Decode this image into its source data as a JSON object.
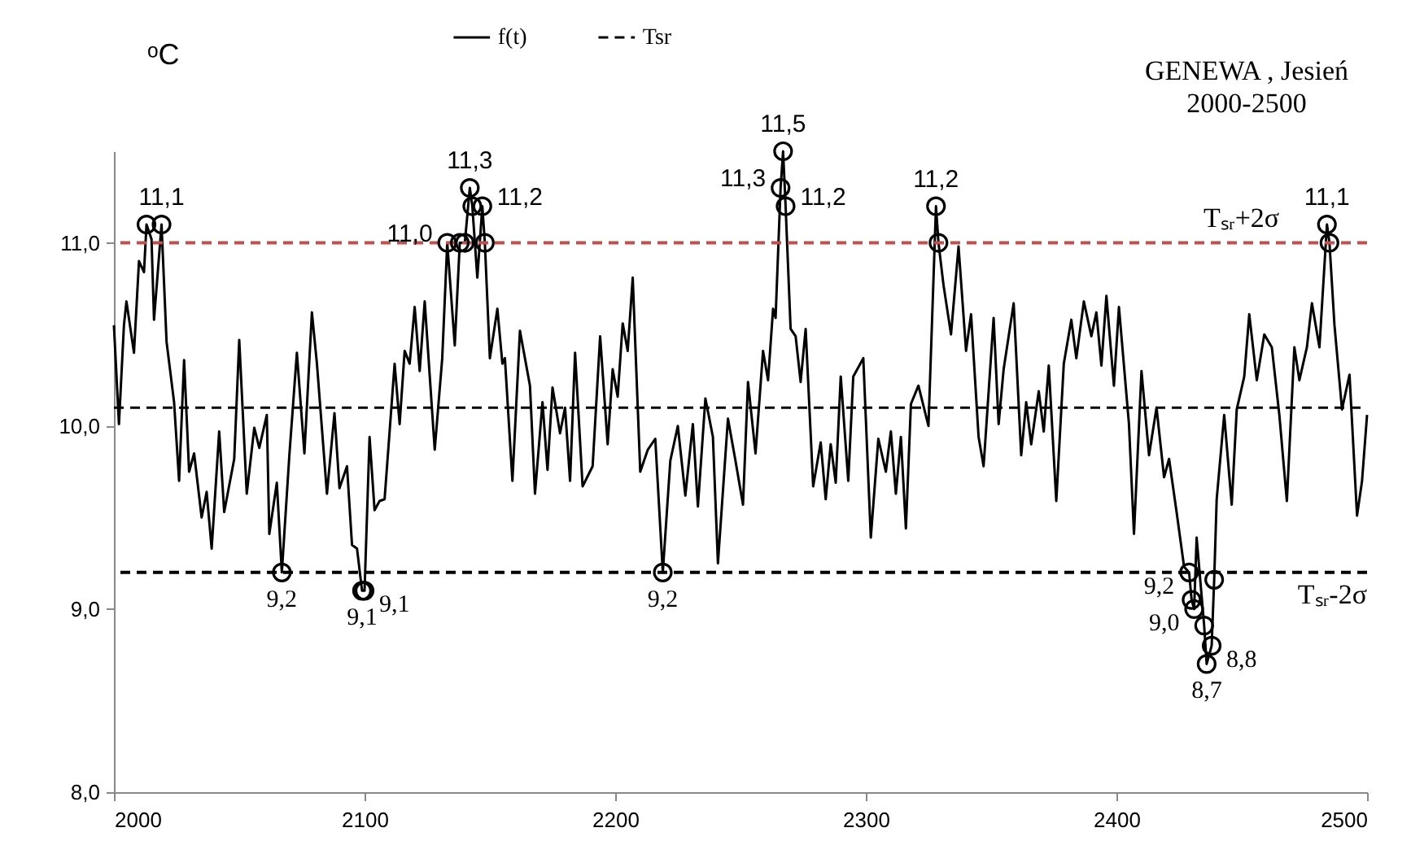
{
  "chart_data": {
    "type": "line",
    "title": "GENEWA , Jesień",
    "subtitle": "2000-2500",
    "ylabel": "ᵒC",
    "xlim": [
      2000,
      2500
    ],
    "xticks": [
      2000,
      2100,
      2200,
      2300,
      2400,
      2500
    ],
    "ylim": [
      8,
      11.5
    ],
    "yticks": [
      {
        "value": 8,
        "label": "8,0"
      },
      {
        "value": 9,
        "label": "9,0"
      },
      {
        "value": 10,
        "label": "10,0"
      },
      {
        "value": 11,
        "label": "11,0"
      }
    ],
    "grid": false,
    "legend": "top",
    "marker": "none",
    "series": [
      {
        "name": "f(t)",
        "type": "line",
        "color": "#000000",
        "line_style": "solid",
        "x": [
          2000,
          2002,
          2004,
          2005,
          2008,
          2010,
          2012,
          2013,
          2015,
          2016,
          2019,
          2021,
          2024,
          2026,
          2028,
          2030,
          2032,
          2035,
          2037,
          2039,
          2042,
          2044,
          2048,
          2050,
          2053,
          2056,
          2058,
          2061,
          2062,
          2065,
          2067,
          2070,
          2073,
          2076,
          2079,
          2081,
          2085,
          2088,
          2090,
          2093,
          2095,
          2097,
          2099,
          2100,
          2102,
          2104,
          2106,
          2108,
          2112,
          2114,
          2116,
          2118,
          2120,
          2122,
          2124,
          2128,
          2131,
          2133,
          2136,
          2138,
          2140,
          2142,
          2143,
          2145,
          2147,
          2148,
          2150,
          2153,
          2155,
          2156,
          2159,
          2162,
          2166,
          2168,
          2171,
          2173,
          2175,
          2178,
          2180,
          2182,
          2184,
          2187,
          2191,
          2194,
          2197,
          2199,
          2201,
          2203,
          2205,
          2207,
          2210,
          2213,
          2216,
          2219,
          2222,
          2225,
          2228,
          2231,
          2233,
          2236,
          2239,
          2241,
          2245,
          2248,
          2251,
          2253,
          2256,
          2259,
          2261,
          2263,
          2264,
          2266,
          2267,
          2268,
          2270,
          2272,
          2274,
          2276,
          2279,
          2282,
          2284,
          2286,
          2288,
          2290,
          2293,
          2295,
          2299,
          2302,
          2305,
          2308,
          2310,
          2312,
          2314,
          2316,
          2318,
          2321,
          2325,
          2328,
          2329,
          2331,
          2334,
          2337,
          2340,
          2342,
          2345,
          2347,
          2351,
          2353,
          2355,
          2359,
          2362,
          2364,
          2366,
          2369,
          2371,
          2373,
          2376,
          2379,
          2382,
          2384,
          2387,
          2390,
          2392,
          2394,
          2396,
          2399,
          2401,
          2405,
          2407,
          2410,
          2413,
          2416,
          2419,
          2421,
          2424,
          2427,
          2429,
          2430,
          2431,
          2432,
          2435,
          2436,
          2438,
          2439,
          2440,
          2443,
          2446,
          2448,
          2451,
          2453,
          2456,
          2459,
          2462,
          2465,
          2468,
          2471,
          2473,
          2476,
          2478,
          2481,
          2484,
          2485,
          2487,
          2490,
          2493,
          2496,
          2498,
          2500
        ],
        "values": [
          10.55,
          10.01,
          10.55,
          10.68,
          10.4,
          10.9,
          10.84,
          11.1,
          11.02,
          10.58,
          11.1,
          10.46,
          10.13,
          9.7,
          10.36,
          9.75,
          9.85,
          9.5,
          9.64,
          9.33,
          9.97,
          9.53,
          9.82,
          10.47,
          9.63,
          9.99,
          9.88,
          10.06,
          9.41,
          9.69,
          9.2,
          9.84,
          10.4,
          9.85,
          10.62,
          10.34,
          9.63,
          10.07,
          9.66,
          9.78,
          9.35,
          9.33,
          9.1,
          9.1,
          9.94,
          9.54,
          9.59,
          9.6,
          10.34,
          10.01,
          10.41,
          10.34,
          10.65,
          10.3,
          10.68,
          9.87,
          10.37,
          11.0,
          10.44,
          11.0,
          11.0,
          11.3,
          11.2,
          10.81,
          11.2,
          11.0,
          10.37,
          10.64,
          10.34,
          10.37,
          9.7,
          10.52,
          10.22,
          9.63,
          10.13,
          9.76,
          10.21,
          9.96,
          10.1,
          9.7,
          10.4,
          9.67,
          9.78,
          10.49,
          9.9,
          10.31,
          10.16,
          10.56,
          10.41,
          10.81,
          9.75,
          9.87,
          9.93,
          9.2,
          9.81,
          10.0,
          9.62,
          10.01,
          9.56,
          10.15,
          9.94,
          9.25,
          10.04,
          9.81,
          9.57,
          10.24,
          9.85,
          10.41,
          10.25,
          10.64,
          10.59,
          11.3,
          11.5,
          11.2,
          10.53,
          10.49,
          10.24,
          10.53,
          9.67,
          9.91,
          9.6,
          9.9,
          9.69,
          10.27,
          9.7,
          10.27,
          10.37,
          9.39,
          9.93,
          9.75,
          9.97,
          9.63,
          9.94,
          9.44,
          10.12,
          10.22,
          10.0,
          11.2,
          11.0,
          10.77,
          10.5,
          10.98,
          10.41,
          10.61,
          9.94,
          9.78,
          10.59,
          10.01,
          10.31,
          10.67,
          9.84,
          10.13,
          9.9,
          10.19,
          9.97,
          10.33,
          9.59,
          10.34,
          10.58,
          10.37,
          10.68,
          10.49,
          10.62,
          10.33,
          10.71,
          10.22,
          10.65,
          10.01,
          9.41,
          10.3,
          9.84,
          10.1,
          9.72,
          9.82,
          9.53,
          9.23,
          9.2,
          9.05,
          9.0,
          9.39,
          8.91,
          8.7,
          8.8,
          9.16,
          9.6,
          10.06,
          9.57,
          10.09,
          10.27,
          10.61,
          10.25,
          10.5,
          10.43,
          10.06,
          9.59,
          10.43,
          10.25,
          10.43,
          10.67,
          10.43,
          11.1,
          11.0,
          10.55,
          10.09,
          10.28,
          9.51,
          9.7,
          10.06
        ]
      },
      {
        "name": "Tsr",
        "type": "line",
        "color": "#000000",
        "line_style": "dashed",
        "x": [
          2000,
          2500
        ],
        "values": [
          10.1,
          10.1
        ]
      },
      {
        "type": "scatter",
        "color": "#000000",
        "marker": "circle",
        "x": [
          2013,
          2019,
          2067,
          2099,
          2100,
          2133,
          2138,
          2140,
          2142,
          2143,
          2147,
          2148,
          2219,
          2266,
          2267,
          2268,
          2328,
          2329,
          2429,
          2430,
          2431,
          2435,
          2436,
          2438,
          2439,
          2484,
          2485
        ],
        "values": [
          11.1,
          11.1,
          9.2,
          9.1,
          9.1,
          11.0,
          11.0,
          11.0,
          11.3,
          11.2,
          11.2,
          11.0,
          9.2,
          11.3,
          11.5,
          11.2,
          11.2,
          11.0,
          9.2,
          9.05,
          9.0,
          8.91,
          8.7,
          8.8,
          9.16,
          11.1,
          11.0
        ],
        "value_labels": [
          null,
          "11,1",
          "9,2",
          "9,1",
          "9,1",
          "11,0",
          null,
          null,
          "11,3",
          null,
          "11,2",
          null,
          "9,2",
          "11,3",
          "11,5",
          "11,2",
          "11,2",
          null,
          "9,2",
          null,
          "9,0",
          null,
          "8,7",
          "8,8",
          null,
          "11,1",
          null
        ]
      }
    ],
    "ref_lines": [
      {
        "axis": "y",
        "value": 11.0,
        "label": "Tₛᵣ+2σ",
        "color": "#c0504d",
        "line_style": "dashed"
      },
      {
        "axis": "y",
        "value": 9.2,
        "label": "Tₛᵣ-2σ",
        "color": "#000000",
        "line_style": "dashed"
      }
    ]
  }
}
